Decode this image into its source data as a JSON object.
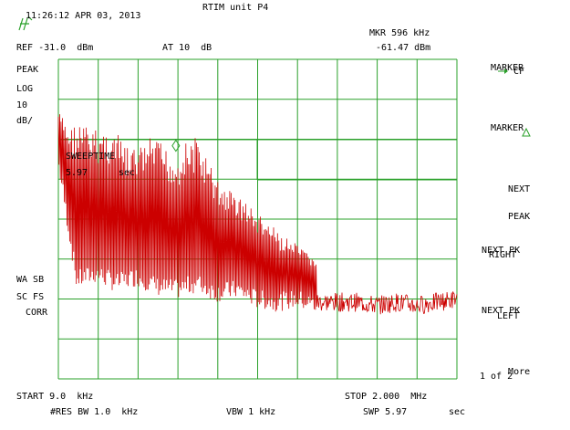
{
  "header": {
    "timestamp": "11:26:12 APR 03, 2013",
    "title": "RTIM unit P4",
    "marker_readout_label": "MKR 596 kHz",
    "marker_readout_value": "-61.47 dBm",
    "reference_level": "REF -31.0  dBm",
    "attenuation": "AT 10  dB"
  },
  "left_annotations": {
    "detector": "PEAK",
    "scale_type": "LOG",
    "scale_value": "10",
    "scale_unit": "dB/",
    "flag_1": "WA SB",
    "flag_2": "SC FS",
    "flag_3": "CORR"
  },
  "grid_overlay": {
    "sweeptime_label": "SWEEPTIME",
    "sweeptime_value": "5.97",
    "sweeptime_unit": "sec"
  },
  "softkeys": {
    "marker_cf_title": "MARKER",
    "marker_cf_sub": "CF",
    "marker_delta_title": "MARKER",
    "next_peak_line1": "NEXT",
    "next_peak_line2": "PEAK",
    "next_pk_right_line1": "NEXT PK",
    "next_pk_right_line2": "RIGHT",
    "next_pk_left_line1": "NEXT PK",
    "next_pk_left_line2": "LEFT",
    "more_line1": "More",
    "more_line2": "1 of 2"
  },
  "footer": {
    "start": "START 9.0  kHz",
    "stop": "STOP 2.000  MHz",
    "res_bw": "#RES BW 1.0  kHz",
    "vbw": "VBW 1 kHz",
    "sweep_label": "SWP 5.97",
    "sweep_unit": "sec"
  },
  "colors": {
    "grid": "#2aa02a",
    "trace": "#cc0000",
    "marker": "#2aa02a",
    "text": "#000000"
  },
  "chart_data": {
    "type": "line",
    "x_unit": "kHz",
    "y_unit": "dBm",
    "xlim": [
      9,
      2000
    ],
    "ylim": [
      -131,
      -31
    ],
    "reference_dbm": -31.0,
    "scale_db_per_div": 10,
    "grid": true,
    "marker": {
      "x": 596,
      "y": -61.47
    },
    "series": [
      {
        "envelope_points": [
          [
            9,
            -47
          ],
          [
            60,
            -52
          ],
          [
            120,
            -50
          ],
          [
            180,
            -53
          ],
          [
            240,
            -52
          ],
          [
            300,
            -54
          ],
          [
            360,
            -59
          ],
          [
            420,
            -58
          ],
          [
            480,
            -55
          ],
          [
            540,
            -58
          ],
          [
            596,
            -61.5
          ],
          [
            640,
            -57
          ],
          [
            700,
            -55
          ],
          [
            760,
            -63
          ],
          [
            820,
            -70
          ],
          [
            880,
            -72
          ],
          [
            940,
            -75
          ],
          [
            1000,
            -79
          ],
          [
            1060,
            -82
          ],
          [
            1120,
            -86
          ],
          [
            1180,
            -88
          ],
          [
            1240,
            -91
          ],
          [
            1300,
            -93
          ],
          [
            1400,
            -96
          ],
          [
            1500,
            -99
          ],
          [
            1600,
            -100
          ],
          [
            1700,
            -101
          ],
          [
            1800,
            -102
          ],
          [
            1900,
            -103
          ],
          [
            2000,
            -102
          ]
        ],
        "floor_points": [
          [
            9,
            -63
          ],
          [
            100,
            -100
          ],
          [
            200,
            -98
          ],
          [
            300,
            -101
          ],
          [
            400,
            -99
          ],
          [
            500,
            -102
          ],
          [
            600,
            -103
          ],
          [
            700,
            -101
          ],
          [
            800,
            -104
          ],
          [
            900,
            -103
          ],
          [
            1000,
            -106
          ],
          [
            1100,
            -107
          ],
          [
            1200,
            -106
          ],
          [
            1300,
            -108
          ],
          [
            1400,
            -108
          ],
          [
            1500,
            -108
          ],
          [
            1600,
            -109
          ],
          [
            1700,
            -108
          ],
          [
            1800,
            -109
          ],
          [
            1900,
            -108
          ],
          [
            2000,
            -107
          ]
        ]
      }
    ]
  }
}
